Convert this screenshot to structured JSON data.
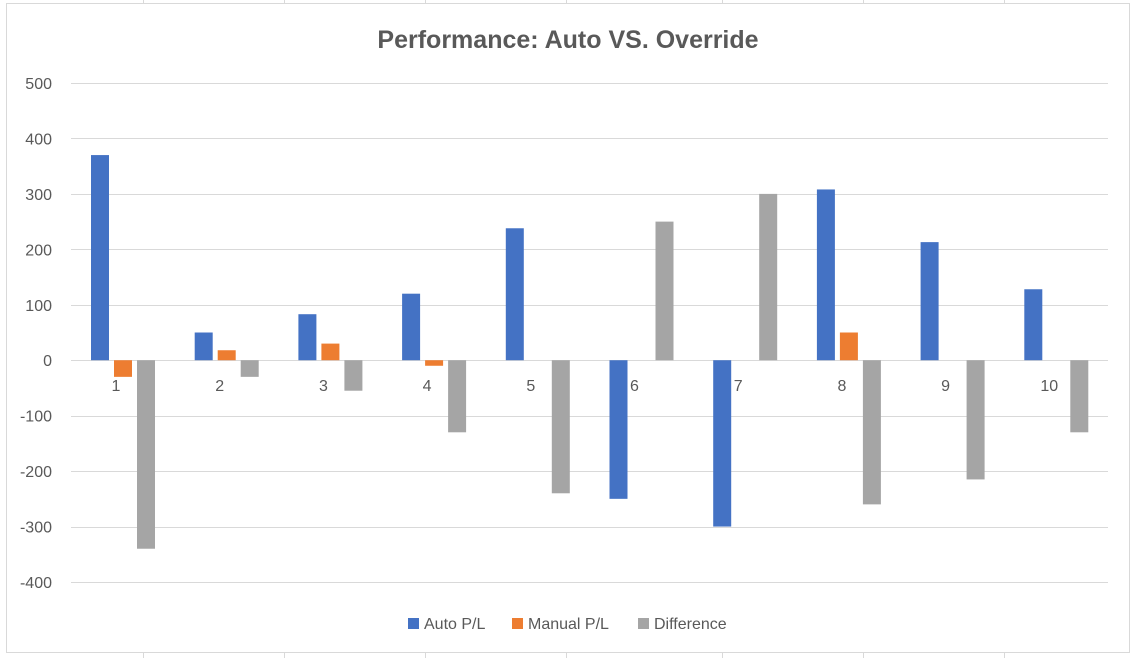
{
  "chart_data": {
    "type": "bar",
    "title": "Performance: Auto VS. Override",
    "xlabel": "",
    "ylabel": "",
    "categories": [
      "1",
      "2",
      "3",
      "4",
      "5",
      "6",
      "7",
      "8",
      "9",
      "10"
    ],
    "series": [
      {
        "name": "Auto P/L",
        "color": "#4472C4",
        "values": [
          370,
          50,
          83,
          120,
          238,
          -250,
          -300,
          308,
          213,
          128
        ]
      },
      {
        "name": "Manual P/L",
        "color": "#ED7D31",
        "values": [
          -30,
          18,
          30,
          -10,
          0,
          0,
          0,
          50,
          0,
          0
        ]
      },
      {
        "name": "Difference",
        "color": "#A5A5A5",
        "values": [
          -340,
          -30,
          -55,
          -130,
          -240,
          250,
          300,
          -260,
          -215,
          -130
        ]
      }
    ],
    "ylim": [
      -400,
      500
    ],
    "yticks": [
      -400,
      -300,
      -200,
      -100,
      0,
      100,
      200,
      300,
      400,
      500
    ],
    "grid": true,
    "legend": "bottom"
  }
}
